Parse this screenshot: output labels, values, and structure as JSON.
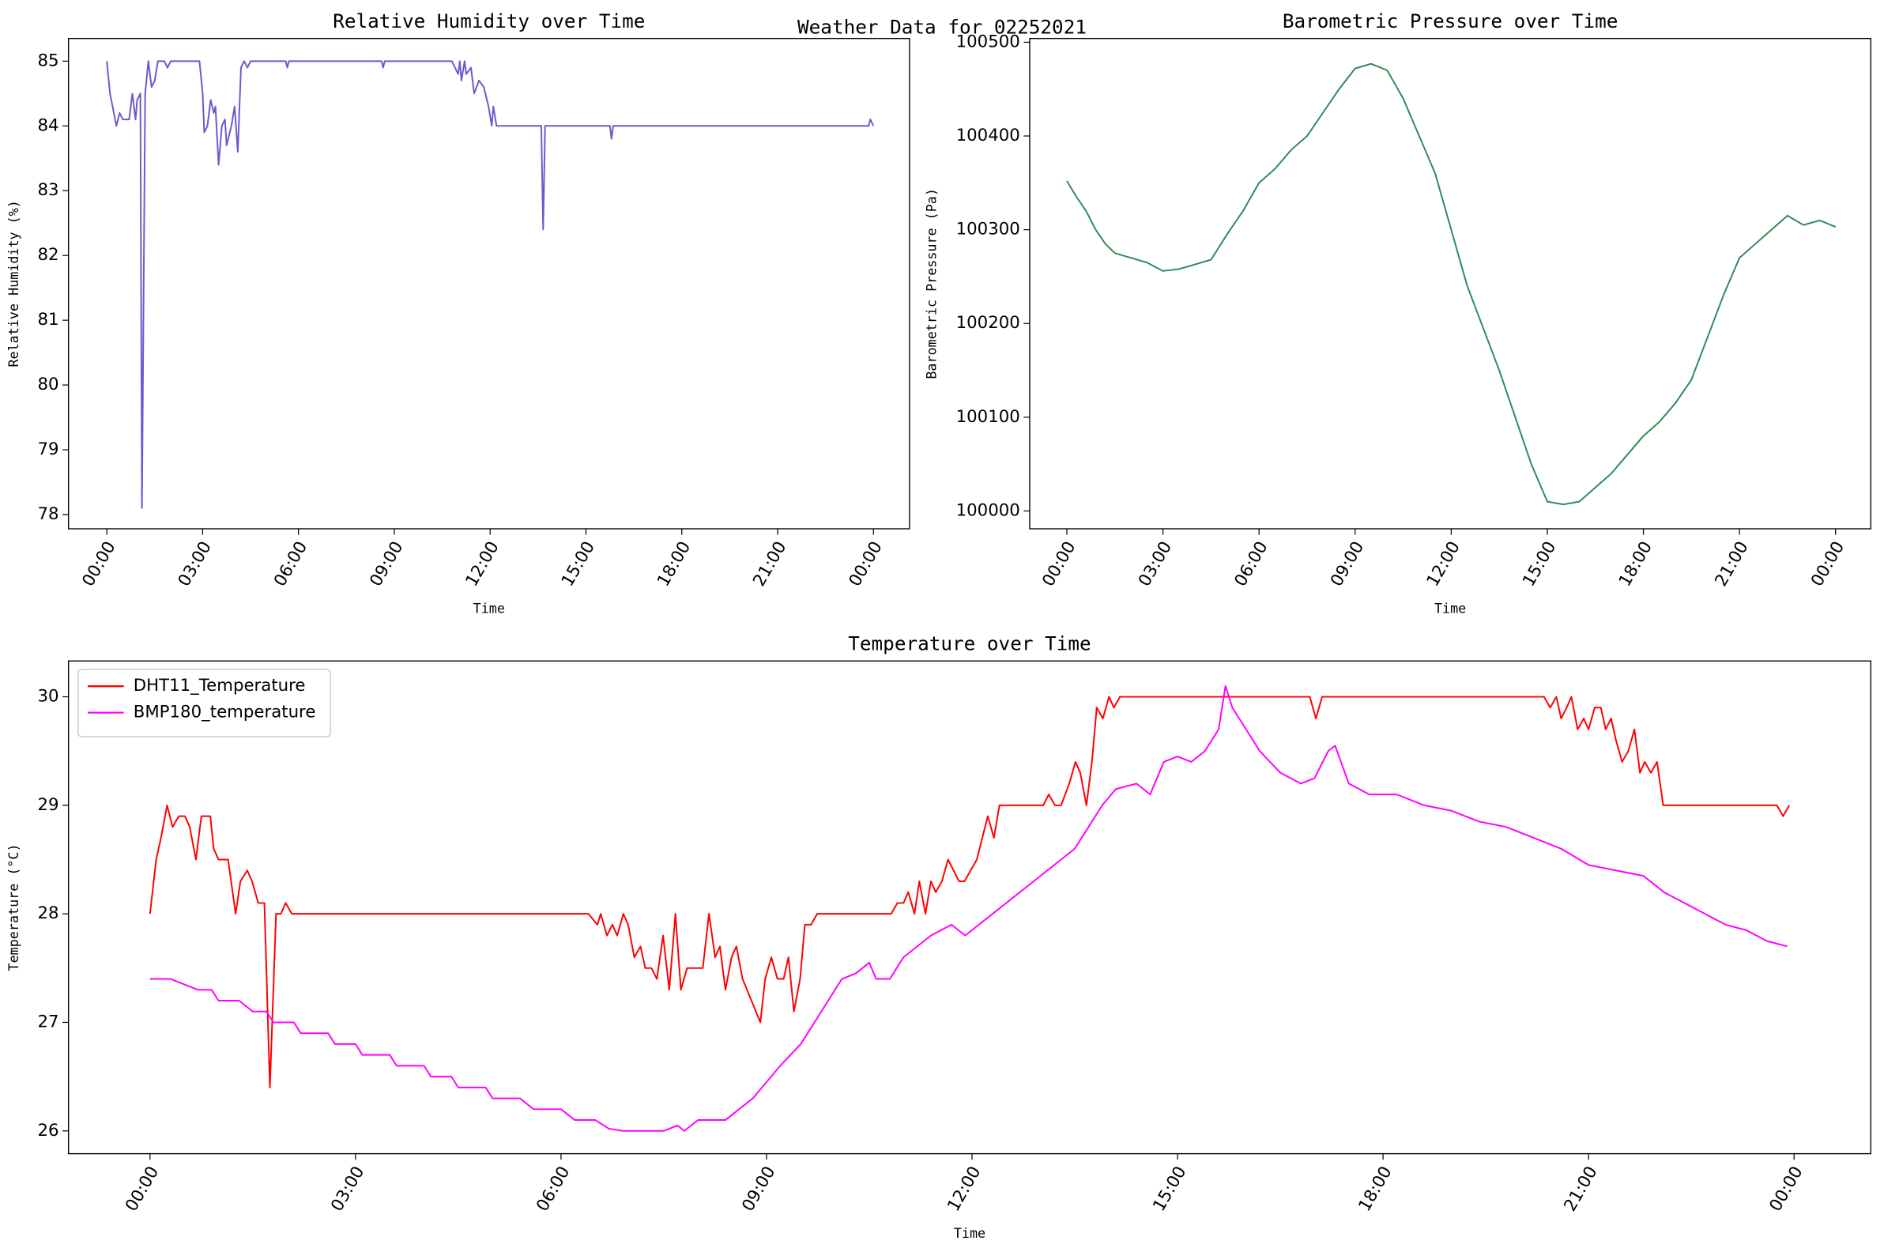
{
  "title": "Weather Data for 02252021",
  "chart_data": [
    {
      "type": "line",
      "title": "Relative Humidity over Time",
      "xlabel": "Time",
      "ylabel": "Relative Humidity (%)",
      "color": "#6a5acd",
      "x": [
        0,
        0.1,
        0.3,
        0.4,
        0.5,
        0.7,
        0.8,
        0.9,
        0.95,
        1.05,
        1.1,
        1.2,
        1.3,
        1.4,
        1.5,
        1.6,
        1.8,
        1.9,
        2.0,
        2.9,
        3.0,
        3.05,
        3.15,
        3.25,
        3.35,
        3.4,
        3.5,
        3.6,
        3.7,
        3.75,
        3.9,
        4.0,
        4.1,
        4.2,
        4.3,
        4.4,
        4.5,
        5.6,
        5.65,
        5.7,
        8.6,
        8.65,
        8.7,
        10.8,
        10.9,
        11.0,
        11.05,
        11.1,
        11.2,
        11.25,
        11.4,
        11.5,
        11.65,
        11.8,
        11.95,
        12.05,
        12.1,
        12.2,
        13.6,
        13.66,
        13.72,
        15.75,
        15.8,
        15.85,
        23.85,
        23.9,
        24.0
      ],
      "values": [
        85,
        84.5,
        84,
        84.2,
        84.1,
        84.1,
        84.5,
        84.1,
        84.4,
        84.5,
        78.1,
        84.5,
        85,
        84.6,
        84.7,
        85,
        85,
        84.9,
        85,
        85,
        84.5,
        83.9,
        84,
        84.4,
        84.2,
        84.3,
        83.4,
        84,
        84.1,
        83.7,
        84,
        84.3,
        83.6,
        84.9,
        85,
        84.9,
        85,
        85,
        84.9,
        85,
        85,
        84.9,
        85,
        85,
        84.9,
        84.8,
        85,
        84.7,
        85,
        84.8,
        84.9,
        84.5,
        84.7,
        84.6,
        84.3,
        84,
        84.3,
        84,
        84,
        82.4,
        84,
        84,
        83.8,
        84,
        84,
        84.1,
        84
      ],
      "xlim": [
        -1.2,
        25.13
      ],
      "ylim": [
        77.78,
        85.35
      ],
      "xticks": [
        {
          "value": 0,
          "label": "00:00"
        },
        {
          "value": 3,
          "label": "03:00"
        },
        {
          "value": 6,
          "label": "06:00"
        },
        {
          "value": 9,
          "label": "09:00"
        },
        {
          "value": 12,
          "label": "12:00"
        },
        {
          "value": 15,
          "label": "15:00"
        },
        {
          "value": 18,
          "label": "18:00"
        },
        {
          "value": 21,
          "label": "21:00"
        },
        {
          "value": 24,
          "label": "00:00"
        }
      ],
      "yticks": [
        78,
        79,
        80,
        81,
        82,
        83,
        84,
        85
      ]
    },
    {
      "type": "line",
      "title": "Barometric Pressure over Time",
      "xlabel": "Time",
      "ylabel": "Barometric Pressure (Pa)",
      "color": "#2e8b57",
      "x": [
        0,
        0.3,
        0.6,
        0.9,
        1.2,
        1.5,
        2,
        2.5,
        3,
        3.5,
        4,
        4.5,
        5,
        5.5,
        6,
        6.5,
        7,
        7.5,
        8,
        8.5,
        9,
        9.5,
        10,
        10.5,
        11,
        11.5,
        12,
        12.5,
        13,
        13.5,
        14,
        14.5,
        15,
        15.5,
        16,
        16.5,
        17,
        17.5,
        18,
        18.5,
        19,
        19.5,
        20,
        20.5,
        21,
        21.5,
        22,
        22.5,
        23,
        23.5,
        24
      ],
      "values": [
        100352,
        100335,
        100320,
        100300,
        100285,
        100275,
        100270,
        100265,
        100256,
        100258,
        100263,
        100268,
        100295,
        100320,
        100350,
        100365,
        100385,
        100400,
        100425,
        100450,
        100472,
        100477,
        100470,
        100440,
        100400,
        100360,
        100300,
        100240,
        100195,
        100150,
        100100,
        100050,
        100010,
        100007,
        100010,
        100025,
        100040,
        100060,
        100080,
        100095,
        100115,
        100140,
        100185,
        100230,
        100270,
        100285,
        100300,
        100315,
        100305,
        100310,
        100303
      ],
      "xlim": [
        -1.16,
        25.1
      ],
      "ylim": [
        99981,
        100504
      ],
      "xticks": [
        {
          "value": 0,
          "label": "00:00"
        },
        {
          "value": 3,
          "label": "03:00"
        },
        {
          "value": 6,
          "label": "06:00"
        },
        {
          "value": 9,
          "label": "09:00"
        },
        {
          "value": 12,
          "label": "12:00"
        },
        {
          "value": 15,
          "label": "15:00"
        },
        {
          "value": 18,
          "label": "18:00"
        },
        {
          "value": 21,
          "label": "21:00"
        },
        {
          "value": 24,
          "label": "00:00"
        }
      ],
      "yticks": [
        100000,
        100100,
        100200,
        100300,
        100400,
        100500
      ]
    },
    {
      "type": "line",
      "title": "Temperature over Time",
      "xlabel": "Time",
      "ylabel": "Temperature (°C)",
      "legend": "upper left",
      "series": [
        {
          "name": "DHT11_Temperature",
          "color": "#ff0000",
          "x": [
            0,
            0.09,
            0.16,
            0.25,
            0.33,
            0.42,
            0.51,
            0.58,
            0.67,
            0.75,
            0.88,
            0.93,
            1.0,
            1.14,
            1.25,
            1.32,
            1.42,
            1.49,
            1.58,
            1.67,
            1.75,
            1.84,
            1.91,
            1.98,
            2.07,
            6.4,
            6.53,
            6.58,
            6.67,
            6.75,
            6.82,
            6.91,
            6.98,
            7.07,
            7.16,
            7.23,
            7.32,
            7.4,
            7.49,
            7.58,
            7.67,
            7.75,
            7.84,
            8.07,
            8.16,
            8.25,
            8.32,
            8.4,
            8.49,
            8.56,
            8.65,
            8.91,
            8.98,
            9.07,
            9.16,
            9.25,
            9.32,
            9.4,
            9.49,
            9.56,
            9.65,
            9.74,
            10.82,
            10.91,
            11.0,
            11.07,
            11.16,
            11.23,
            11.32,
            11.4,
            11.47,
            11.56,
            11.65,
            11.81,
            11.89,
            12.07,
            12.23,
            12.32,
            12.4,
            13.04,
            13.12,
            13.21,
            13.3,
            13.42,
            13.51,
            13.58,
            13.67,
            13.75,
            13.82,
            13.91,
            14.0,
            14.07,
            14.16,
            16.93,
            17.02,
            17.11,
            20.35,
            20.44,
            20.53,
            20.6,
            20.68,
            20.75,
            20.84,
            20.93,
            21.0,
            21.09,
            21.18,
            21.25,
            21.33,
            21.4,
            21.49,
            21.58,
            21.67,
            21.75,
            21.82,
            21.91,
            22.0,
            22.09,
            23.75,
            23.84,
            23.93
          ],
          "values": [
            28,
            28.5,
            28.7,
            29,
            28.8,
            28.9,
            28.9,
            28.8,
            28.5,
            28.9,
            28.9,
            28.6,
            28.5,
            28.5,
            28,
            28.3,
            28.4,
            28.3,
            28.1,
            28.1,
            26.4,
            28,
            28,
            28.1,
            28,
            28,
            27.9,
            28,
            27.8,
            27.9,
            27.8,
            28,
            27.9,
            27.6,
            27.7,
            27.5,
            27.5,
            27.4,
            27.8,
            27.3,
            28,
            27.3,
            27.5,
            27.5,
            28,
            27.6,
            27.7,
            27.3,
            27.6,
            27.7,
            27.4,
            27,
            27.4,
            27.6,
            27.4,
            27.4,
            27.6,
            27.1,
            27.4,
            27.9,
            27.9,
            28,
            28,
            28.1,
            28.1,
            28.2,
            28,
            28.3,
            28,
            28.3,
            28.2,
            28.3,
            28.5,
            28.3,
            28.3,
            28.5,
            28.9,
            28.7,
            29,
            29,
            29.1,
            29,
            29,
            29.2,
            29.4,
            29.3,
            29,
            29.4,
            29.9,
            29.8,
            30,
            29.9,
            30,
            30,
            29.8,
            30,
            30,
            29.9,
            30,
            29.8,
            29.9,
            30,
            29.7,
            29.8,
            29.7,
            29.9,
            29.9,
            29.7,
            29.8,
            29.6,
            29.4,
            29.5,
            29.7,
            29.3,
            29.4,
            29.3,
            29.4,
            29,
            29,
            28.9,
            29
          ]
        },
        {
          "name": "BMP180_temperature",
          "color": "#ff00ff",
          "x": [
            0,
            0.3,
            0.5,
            0.7,
            0.9,
            1.0,
            1.3,
            1.5,
            1.7,
            1.8,
            2.1,
            2.2,
            2.6,
            2.7,
            3.0,
            3.1,
            3.5,
            3.6,
            4.0,
            4.1,
            4.4,
            4.5,
            4.9,
            5.0,
            5.4,
            5.6,
            6.0,
            6.2,
            6.5,
            6.7,
            6.9,
            7.5,
            7.7,
            7.8,
            7.9,
            8.0,
            8.4,
            8.6,
            8.8,
            9.0,
            9.2,
            9.5,
            9.7,
            9.9,
            10.1,
            10.3,
            10.5,
            10.6,
            10.8,
            11.0,
            11.2,
            11.4,
            11.7,
            11.9,
            12.1,
            12.3,
            12.5,
            12.7,
            12.9,
            13.1,
            13.3,
            13.5,
            13.7,
            13.9,
            14.1,
            14.4,
            14.6,
            14.8,
            15.0,
            15.2,
            15.4,
            15.6,
            15.7,
            15.8,
            16.0,
            16.2,
            16.5,
            16.8,
            17.0,
            17.2,
            17.3,
            17.5,
            17.8,
            18.2,
            18.6,
            19.0,
            19.4,
            19.8,
            20.2,
            20.6,
            21.0,
            21.4,
            21.8,
            22.1,
            22.4,
            22.7,
            23.0,
            23.3,
            23.6,
            23.9
          ],
          "values": [
            27.4,
            27.4,
            27.35,
            27.3,
            27.3,
            27.2,
            27.2,
            27.1,
            27.1,
            27.0,
            27.0,
            26.9,
            26.9,
            26.8,
            26.8,
            26.7,
            26.7,
            26.6,
            26.6,
            26.5,
            26.5,
            26.4,
            26.4,
            26.3,
            26.3,
            26.2,
            26.2,
            26.1,
            26.1,
            26.02,
            26.0,
            26.0,
            26.05,
            26.0,
            26.05,
            26.1,
            26.1,
            26.2,
            26.3,
            26.45,
            26.6,
            26.8,
            27.0,
            27.2,
            27.4,
            27.45,
            27.55,
            27.4,
            27.4,
            27.6,
            27.7,
            27.8,
            27.9,
            27.8,
            27.9,
            28.0,
            28.1,
            28.2,
            28.3,
            28.4,
            28.5,
            28.6,
            28.8,
            29.0,
            29.15,
            29.2,
            29.1,
            29.4,
            29.45,
            29.4,
            29.5,
            29.7,
            30.1,
            29.9,
            29.7,
            29.5,
            29.3,
            29.2,
            29.25,
            29.5,
            29.55,
            29.2,
            29.1,
            29.1,
            29.0,
            28.95,
            28.85,
            28.8,
            28.7,
            28.6,
            28.45,
            28.4,
            28.35,
            28.2,
            28.1,
            28.0,
            27.9,
            27.85,
            27.75,
            27.7
          ]
        }
      ],
      "xlim": [
        -1.19,
        25.12
      ],
      "ylim": [
        25.79,
        30.33
      ],
      "xticks": [
        {
          "value": 0,
          "label": "00:00"
        },
        {
          "value": 3,
          "label": "03:00"
        },
        {
          "value": 6,
          "label": "06:00"
        },
        {
          "value": 9,
          "label": "09:00"
        },
        {
          "value": 12,
          "label": "12:00"
        },
        {
          "value": 15,
          "label": "15:00"
        },
        {
          "value": 18,
          "label": "18:00"
        },
        {
          "value": 21,
          "label": "21:00"
        },
        {
          "value": 24,
          "label": "00:00"
        }
      ],
      "yticks": [
        26,
        27,
        28,
        29,
        30
      ]
    }
  ]
}
